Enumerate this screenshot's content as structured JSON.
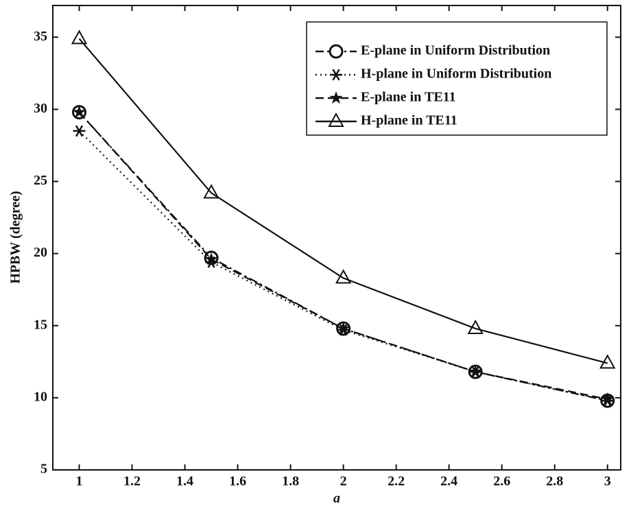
{
  "chart_data": {
    "type": "line",
    "xlabel": "a",
    "ylabel": "HPBW (degree)",
    "x": [
      1,
      1.5,
      2,
      2.5,
      3
    ],
    "series": [
      {
        "name": "E-plane in Uniform Distribution",
        "color": "#111111",
        "marker": "circle",
        "line_style": "dashdot",
        "values": [
          29.8,
          19.7,
          14.8,
          11.8,
          9.8
        ]
      },
      {
        "name": "H-plane in Uniform Distribution",
        "color": "#111111",
        "marker": "asterisk",
        "line_style": "dotted",
        "values": [
          28.5,
          19.4,
          14.7,
          11.8,
          9.8
        ]
      },
      {
        "name": "E-plane in TE11",
        "color": "#111111",
        "marker": "star",
        "line_style": "dashed",
        "values": [
          29.8,
          19.6,
          14.8,
          11.8,
          9.9
        ]
      },
      {
        "name": "H-plane in TE11",
        "color": "#111111",
        "marker": "triangle",
        "line_style": "solid",
        "values": [
          34.9,
          24.2,
          18.3,
          14.8,
          12.4
        ]
      }
    ],
    "xlim": [
      0.9,
      3.05
    ],
    "ylim": [
      5,
      37.2
    ],
    "xticks": [
      1,
      1.2,
      1.4,
      1.6,
      1.8,
      2,
      2.2,
      2.4,
      2.6,
      2.8,
      3
    ],
    "yticks": [
      5,
      10,
      15,
      20,
      25,
      30,
      35
    ],
    "grid": false,
    "legend": "upper-right"
  }
}
